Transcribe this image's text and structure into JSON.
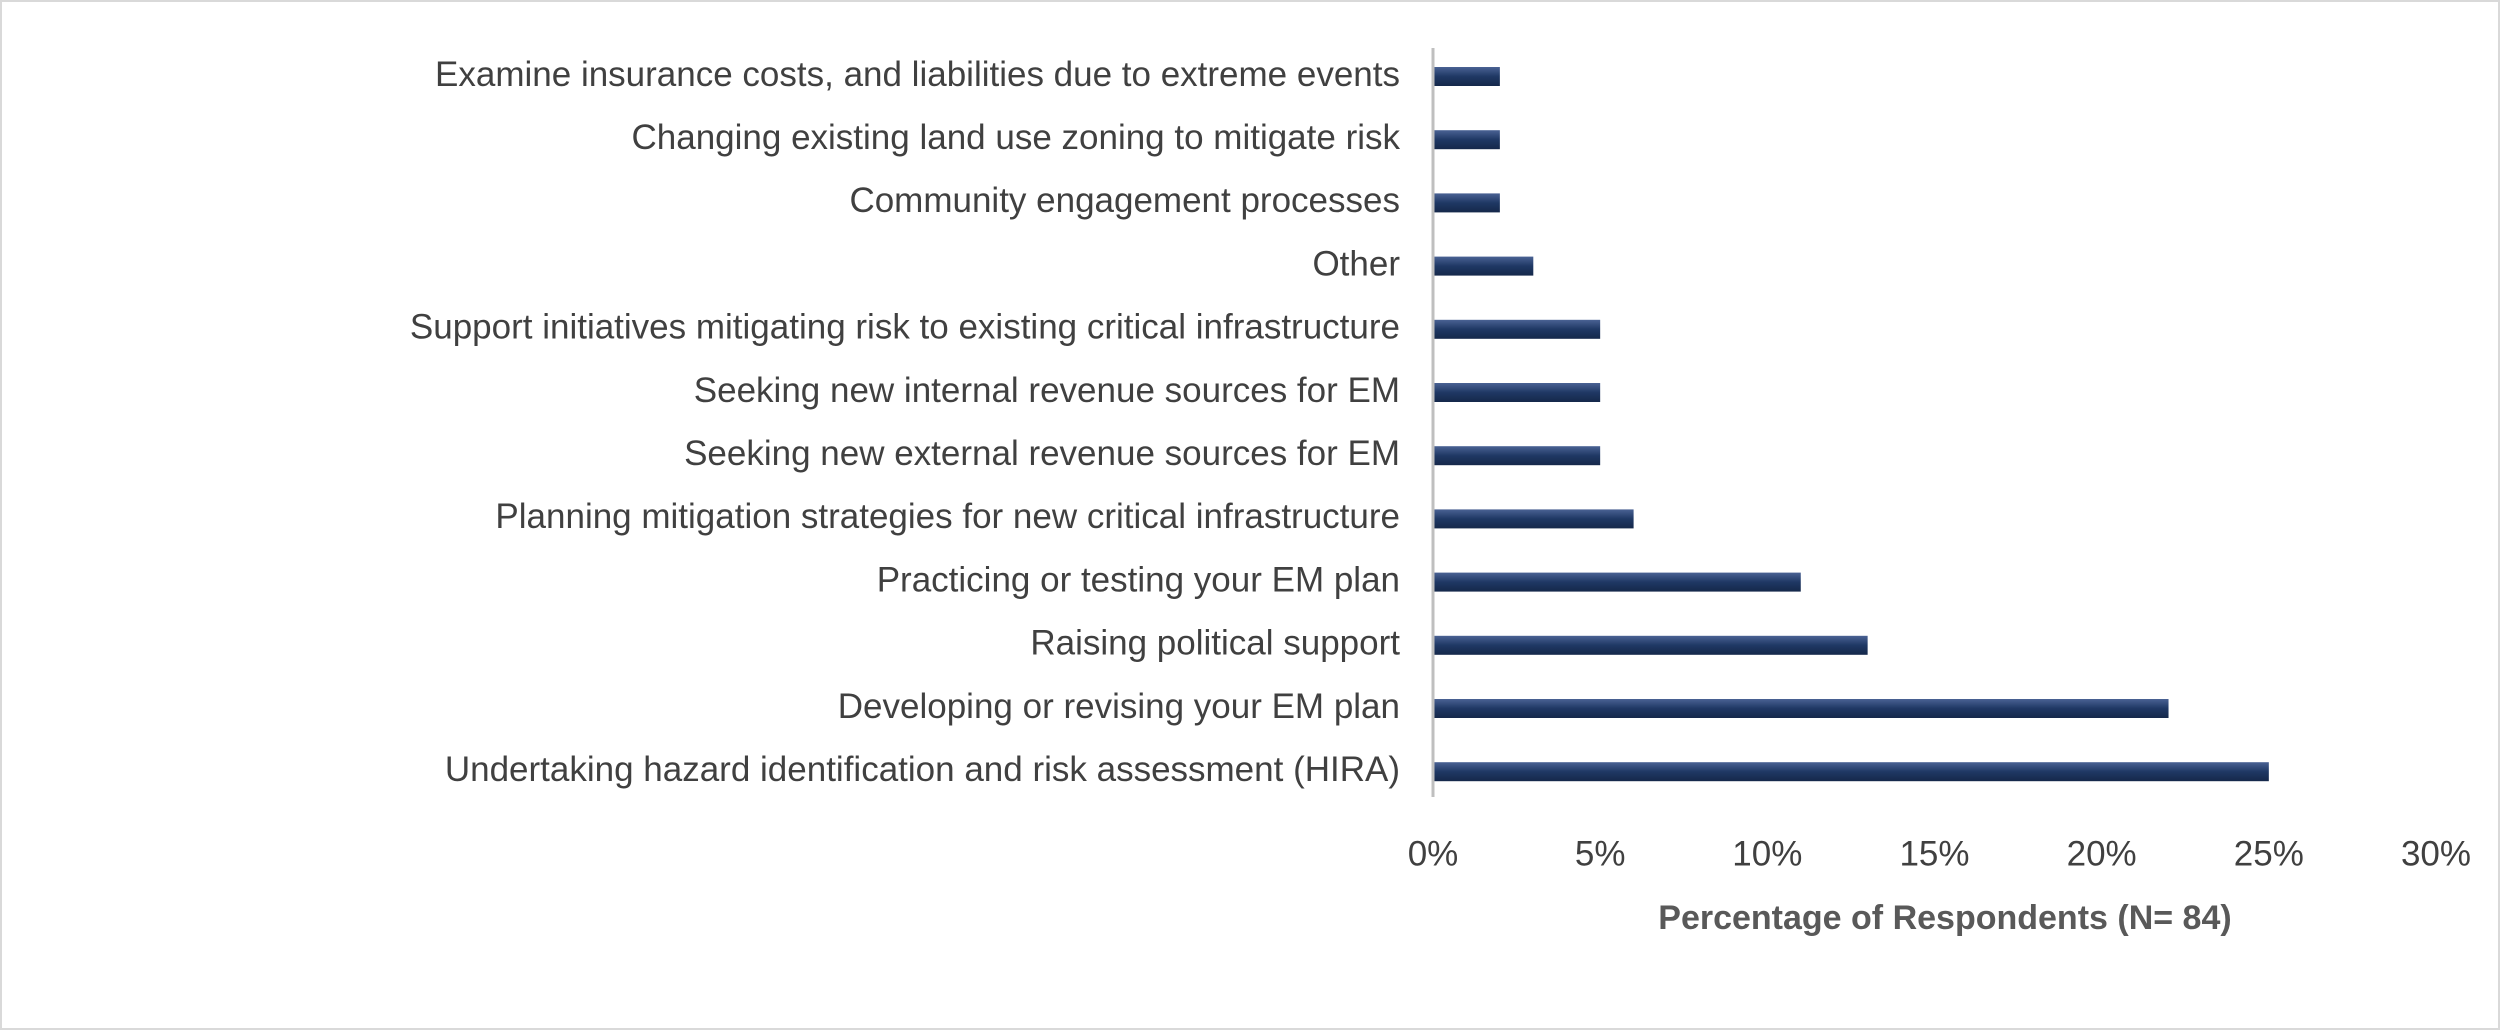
{
  "chart_data": {
    "type": "bar",
    "orientation": "horizontal",
    "x_label": "Percentage of Respondents (N= 84)",
    "categories": [
      "Examine insurance costs, and liabilities due to extreme events",
      "Changing existing land use zoning to mitigate risk",
      "Community engagement processes",
      "Other",
      "Support initiatives mitigating risk to existing critical infrastructure",
      "Seeking new internal revenue sources for EM",
      "Seeking new external revenue sources for EM",
      "Planning mitigation strategies for new critical infrastructure",
      "Practicing or testing your EM plan",
      "Raising political support",
      "Developing or revising your EM plan",
      "Undertaking hazard identification and risk assessment (HIRA)"
    ],
    "values": [
      2,
      2,
      2,
      3,
      5,
      5,
      5,
      6,
      11,
      13,
      22,
      25
    ],
    "color": "#1f3864",
    "xlim": [
      0,
      30
    ],
    "xticks": [
      {
        "value": 0,
        "label": "0%"
      },
      {
        "value": 5,
        "label": "5%"
      },
      {
        "value": 10,
        "label": "10%"
      },
      {
        "value": 15,
        "label": "15%"
      },
      {
        "value": 20,
        "label": "20%"
      },
      {
        "value": 25,
        "label": "25%"
      },
      {
        "value": 30,
        "label": "30%"
      }
    ],
    "grid": false
  }
}
